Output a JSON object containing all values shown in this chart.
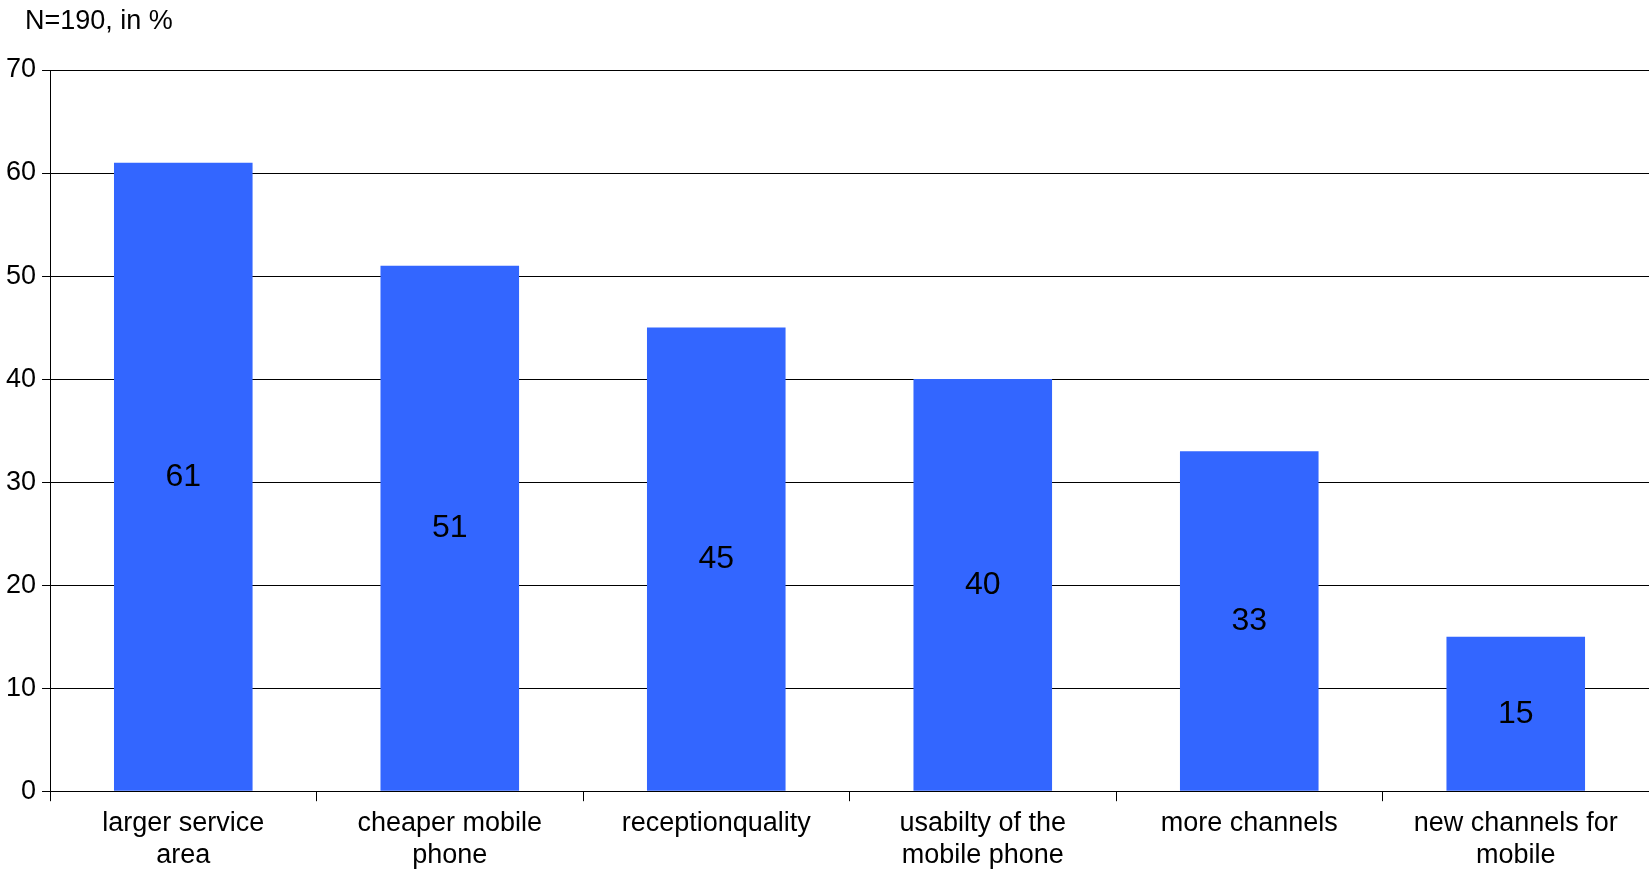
{
  "chart_data": {
    "type": "bar",
    "ylabel": "N=190, in %",
    "categories": [
      "larger service area",
      "cheaper mobile phone",
      "receptionquality",
      "usabilty of the mobile phone",
      "more channels",
      "new channels for mobile"
    ],
    "values": [
      61,
      51,
      45,
      40,
      33,
      15
    ],
    "color": "#3366ff",
    "ylim": [
      0,
      70
    ],
    "yticks": [
      0,
      10,
      20,
      30,
      40,
      50,
      60,
      70
    ],
    "grid": "y",
    "data_labels": true,
    "legend": false
  }
}
